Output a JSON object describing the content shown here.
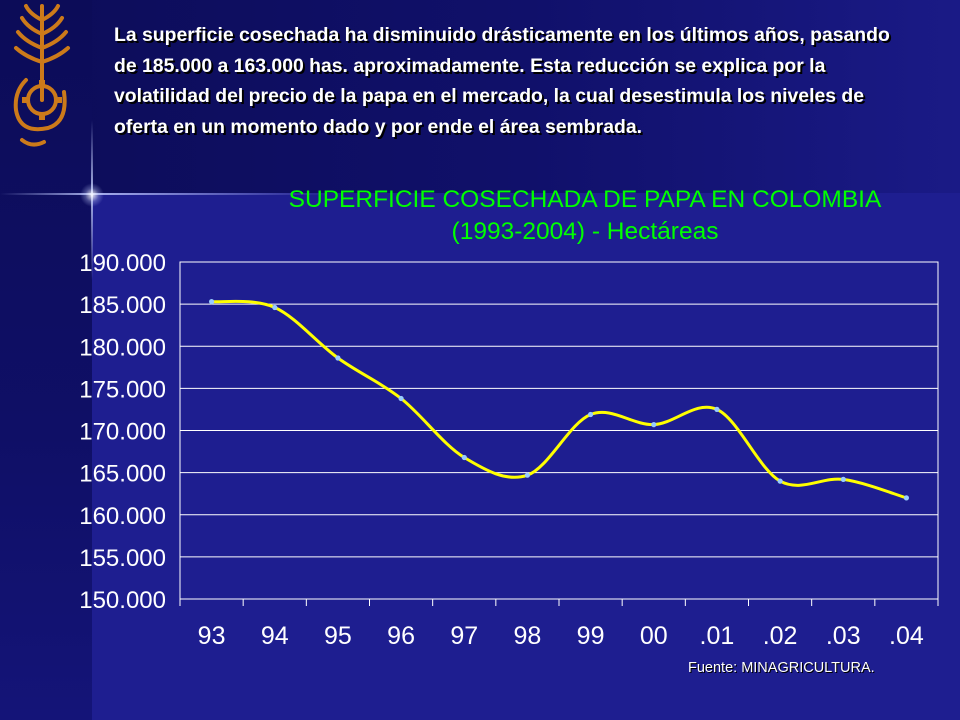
{
  "slide": {
    "intro_text": "La superficie cosechada ha disminuido drásticamente en los últimos años, pasando de 185.000 a 163.000 has. aproximadamente. Esta reducción se explica por la volatilidad del precio de la papa en el mercado, la cual desestimula los niveles de oferta en un momento dado y por ende el área sembrada.",
    "logo_icon": "wheat-gear-logo-icon",
    "source": "Fuente: MINAGRICULTURA."
  },
  "colors": {
    "background": "#1c1c8c",
    "title_text": "#00ff00",
    "line": "#ffff00",
    "points": "#99ccff",
    "grid": "#ffffff",
    "logo": "#cc7a1a"
  },
  "chart_data": {
    "type": "line",
    "title_line1": "SUPERFICIE COSECHADA DE PAPA EN COLOMBIA",
    "title_line2": "(1993-2004) - Hectáreas",
    "categories": [
      "93",
      "94",
      "95",
      "96",
      "97",
      "98",
      "99",
      "00",
      ".01",
      ".02",
      ".03",
      ".04"
    ],
    "series": [
      {
        "values": [
          185300,
          184600,
          178600,
          173800,
          166800,
          164700,
          171900,
          170700,
          172500,
          164000,
          164200,
          162000
        ]
      }
    ],
    "ylim": [
      150000,
      190000
    ],
    "ytick_labels": [
      "190.000",
      "185.000",
      "180.000",
      "175.000",
      "170.000",
      "165.000",
      "160.000",
      "155.000",
      "150.000"
    ],
    "grid": "horizontal",
    "smooth": true
  }
}
